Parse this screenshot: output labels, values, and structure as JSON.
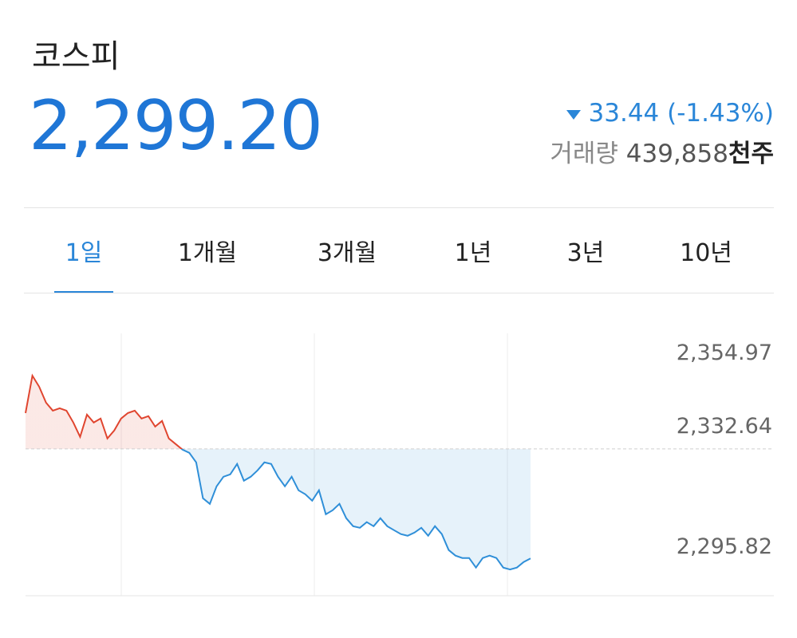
{
  "header": {
    "title": "코스피",
    "price": "2,299.20",
    "change": "33.44 (-1.43%)",
    "volume_label": "거래량",
    "volume": "439,858",
    "volume_unit": "천주"
  },
  "tabs": {
    "items": [
      "1일",
      "1개월",
      "3개월",
      "1년",
      "3년",
      "10년"
    ],
    "selected": 0
  },
  "chart_data": {
    "type": "line",
    "values": [
      2343.59,
      2354.97,
      2351.62,
      2346.75,
      2344.32,
      2345.05,
      2344.32,
      2340.67,
      2336.29,
      2343.1,
      2340.67,
      2341.89,
      2335.8,
      2338.24,
      2341.89,
      2343.59,
      2344.32,
      2341.89,
      2342.62,
      2339.45,
      2341.16,
      2335.8,
      2334.1,
      2332.4,
      2331.42,
      2328.5,
      2317.55,
      2315.85,
      2321.2,
      2324.12,
      2324.85,
      2328.02,
      2322.91,
      2324.12,
      2326.07,
      2328.5,
      2328.02,
      2324.12,
      2321.2,
      2324.12,
      2319.99,
      2318.77,
      2316.82,
      2319.99,
      2312.69,
      2313.91,
      2315.85,
      2311.47,
      2309.04,
      2308.55,
      2310.26,
      2309.04,
      2311.47,
      2309.04,
      2307.82,
      2306.61,
      2306.12,
      2307.09,
      2308.55,
      2306.12,
      2309.04,
      2306.61,
      2301.74,
      2300.04,
      2299.31,
      2299.31,
      2296.39,
      2299.31,
      2300.04,
      2299.31,
      2296.39,
      2295.82,
      2296.39,
      2298.09,
      2299.2
    ],
    "baseline": 2332.64,
    "up_color": "#e0452f",
    "down_color": "#2f8fd8",
    "ylim": [
      2287.8,
      2367.9
    ],
    "yticks": [
      {
        "value": 2354.97,
        "label": "2,354.97"
      },
      {
        "value": 2332.64,
        "label": "2,332.64"
      },
      {
        "value": 2295.82,
        "label": "2,295.82"
      }
    ]
  }
}
